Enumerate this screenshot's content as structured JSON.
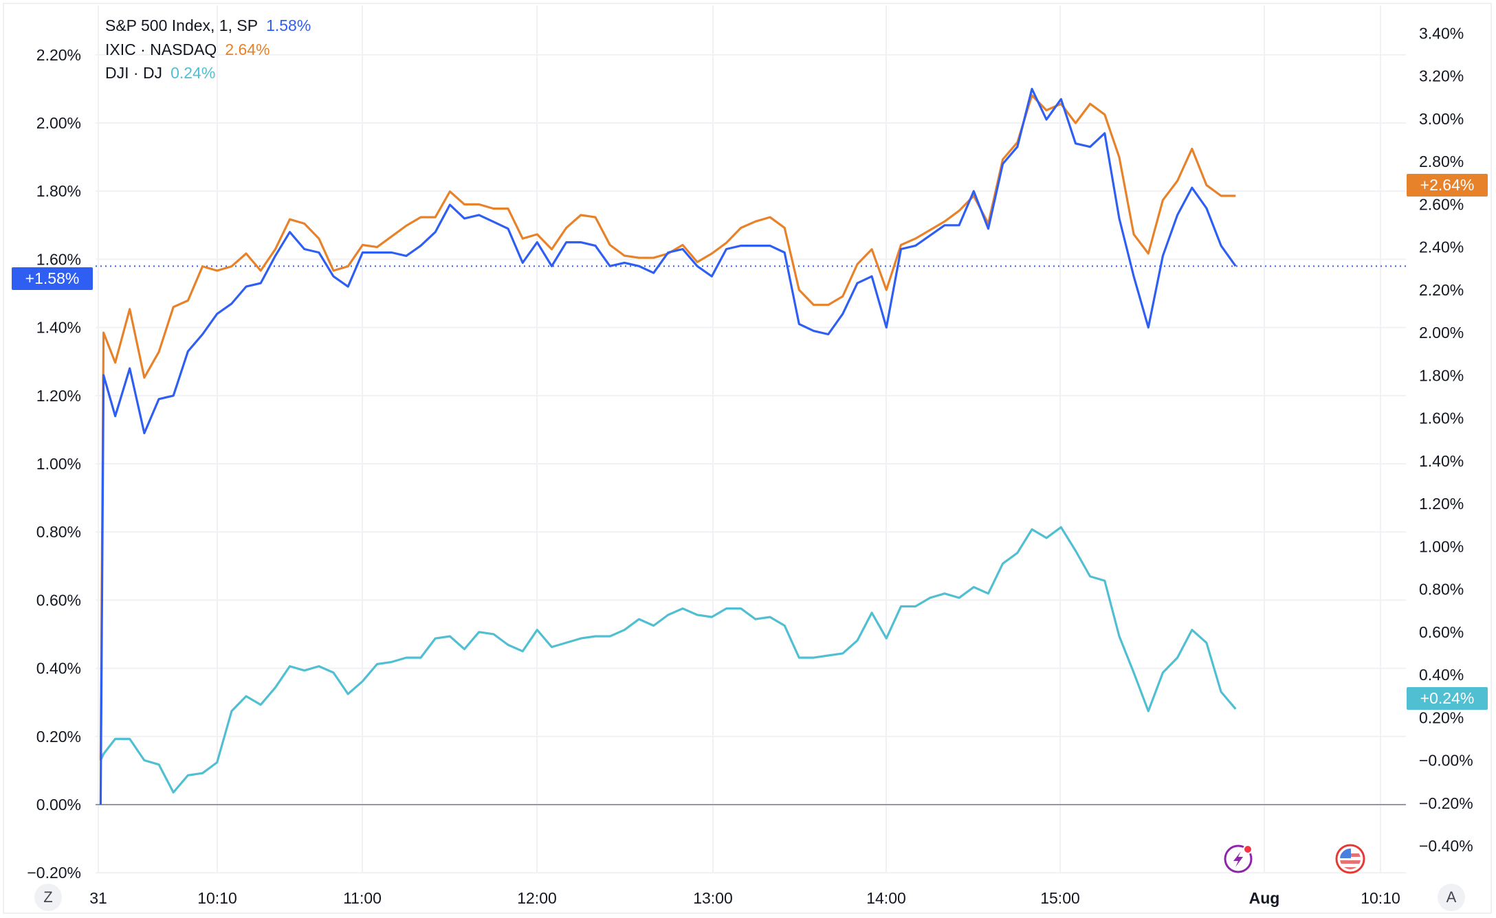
{
  "legend": [
    {
      "name": "S&P 500 Index, 1, SP",
      "value": "1.58%",
      "color": "#2f5ff2"
    },
    {
      "name": "IXIC · NASDAQ",
      "value": "2.64%",
      "color": "#e8822a"
    },
    {
      "name": "DJI · DJ",
      "value": "0.24%",
      "color": "#50bfd2"
    }
  ],
  "price_labels": {
    "sp": "+1.58%",
    "ndx": "+2.64%",
    "dji": "+0.24%"
  },
  "buttons": {
    "left_scale": "Z",
    "right_scale": "A"
  },
  "icons": [
    "lightning-events-icon",
    "us-flag-icon"
  ],
  "chart_data": {
    "type": "line",
    "grid": true,
    "legend_placement": "top-left",
    "left_axis": {
      "ticks": [
        "2.20%",
        "2.00%",
        "1.80%",
        "1.60%",
        "1.40%",
        "1.20%",
        "1.00%",
        "0.80%",
        "0.60%",
        "0.40%",
        "0.20%",
        "0.00%",
        "−0.20%"
      ],
      "range": [
        -0.2,
        2.2
      ]
    },
    "right_axis": {
      "ticks": [
        "3.40%",
        "3.20%",
        "3.00%",
        "2.80%",
        "2.60%",
        "2.40%",
        "2.20%",
        "2.00%",
        "1.80%",
        "1.60%",
        "1.40%",
        "1.20%",
        "1.00%",
        "0.80%",
        "0.60%",
        "0.40%",
        "0.20%",
        "−0.00%",
        "−0.20%",
        "−0.40%"
      ],
      "range": [
        -0.4,
        3.4
      ]
    },
    "x_ticks": [
      "31",
      "10:10",
      "11:00",
      "12:00",
      "13:00",
      "14:00",
      "15:00",
      "Aug",
      "10:10"
    ],
    "x": [
      "09:30",
      "09:31",
      "09:35",
      "09:40",
      "09:45",
      "09:50",
      "09:55",
      "10:00",
      "10:05",
      "10:10",
      "10:15",
      "10:20",
      "10:25",
      "10:30",
      "10:35",
      "10:40",
      "10:45",
      "10:50",
      "10:55",
      "11:00",
      "11:05",
      "11:10",
      "11:15",
      "11:20",
      "11:25",
      "11:30",
      "11:35",
      "11:40",
      "11:45",
      "11:50",
      "11:55",
      "12:00",
      "12:05",
      "12:10",
      "12:15",
      "12:20",
      "12:25",
      "12:30",
      "12:35",
      "12:40",
      "12:45",
      "12:50",
      "12:55",
      "13:00",
      "13:05",
      "13:10",
      "13:15",
      "13:20",
      "13:25",
      "13:30",
      "13:35",
      "13:40",
      "13:45",
      "13:50",
      "13:55",
      "14:00",
      "14:05",
      "14:10",
      "14:15",
      "14:20",
      "14:25",
      "14:30",
      "14:35",
      "14:40",
      "14:45",
      "14:50",
      "14:55",
      "15:00",
      "15:05",
      "15:10",
      "15:15",
      "15:20",
      "15:25",
      "15:30",
      "15:35",
      "15:40",
      "15:45",
      "15:50",
      "15:55",
      "16:00"
    ],
    "series": [
      {
        "name": "S&P 500 Index, 1, SP",
        "axis": "left",
        "color": "#2f5ff2",
        "values": [
          0.0,
          1.26,
          1.14,
          1.28,
          1.09,
          1.19,
          1.2,
          1.33,
          1.38,
          1.44,
          1.47,
          1.52,
          1.53,
          1.61,
          1.68,
          1.63,
          1.62,
          1.55,
          1.52,
          1.62,
          1.62,
          1.62,
          1.61,
          1.64,
          1.68,
          1.76,
          1.72,
          1.73,
          1.71,
          1.69,
          1.59,
          1.65,
          1.58,
          1.65,
          1.65,
          1.64,
          1.58,
          1.59,
          1.58,
          1.56,
          1.62,
          1.63,
          1.58,
          1.55,
          1.63,
          1.64,
          1.64,
          1.64,
          1.62,
          1.41,
          1.39,
          1.38,
          1.44,
          1.53,
          1.55,
          1.4,
          1.63,
          1.64,
          1.67,
          1.7,
          1.7,
          1.8,
          1.69,
          1.88,
          1.93,
          2.1,
          2.01,
          2.07,
          1.94,
          1.93,
          1.97,
          1.72,
          1.55,
          1.4,
          1.61,
          1.73,
          1.81,
          1.75,
          1.64,
          1.58
        ]
      },
      {
        "name": "IXIC · NASDAQ",
        "axis": "right",
        "color": "#e8822a",
        "values": [
          0.0,
          2.0,
          1.86,
          2.11,
          1.79,
          1.91,
          2.12,
          2.15,
          2.31,
          2.29,
          2.31,
          2.37,
          2.29,
          2.39,
          2.53,
          2.51,
          2.44,
          2.29,
          2.31,
          2.41,
          2.4,
          2.45,
          2.5,
          2.54,
          2.54,
          2.66,
          2.6,
          2.6,
          2.58,
          2.58,
          2.44,
          2.46,
          2.39,
          2.49,
          2.55,
          2.54,
          2.41,
          2.36,
          2.35,
          2.35,
          2.37,
          2.41,
          2.33,
          2.37,
          2.42,
          2.49,
          2.52,
          2.54,
          2.49,
          2.2,
          2.13,
          2.13,
          2.17,
          2.32,
          2.39,
          2.2,
          2.41,
          2.44,
          2.48,
          2.52,
          2.57,
          2.64,
          2.51,
          2.81,
          2.89,
          3.11,
          3.04,
          3.07,
          2.98,
          3.07,
          3.02,
          2.82,
          2.46,
          2.37,
          2.62,
          2.71,
          2.86,
          2.69,
          2.64,
          2.64
        ]
      },
      {
        "name": "DJI · DJ",
        "axis": "right",
        "color": "#50bfd2",
        "values": [
          0.0,
          0.03,
          0.1,
          0.1,
          0.0,
          -0.02,
          -0.15,
          -0.07,
          -0.06,
          -0.01,
          0.23,
          0.3,
          0.26,
          0.34,
          0.44,
          0.42,
          0.44,
          0.41,
          0.31,
          0.37,
          0.45,
          0.46,
          0.48,
          0.48,
          0.57,
          0.58,
          0.52,
          0.6,
          0.59,
          0.54,
          0.51,
          0.61,
          0.53,
          0.55,
          0.57,
          0.58,
          0.58,
          0.61,
          0.66,
          0.63,
          0.68,
          0.71,
          0.68,
          0.67,
          0.71,
          0.71,
          0.66,
          0.67,
          0.63,
          0.48,
          0.48,
          0.49,
          0.5,
          0.56,
          0.69,
          0.57,
          0.72,
          0.72,
          0.76,
          0.78,
          0.76,
          0.81,
          0.78,
          0.92,
          0.97,
          1.08,
          1.04,
          1.09,
          0.98,
          0.86,
          0.84,
          0.58,
          0.41,
          0.23,
          0.41,
          0.48,
          0.61,
          0.55,
          0.32,
          0.24
        ]
      }
    ]
  }
}
